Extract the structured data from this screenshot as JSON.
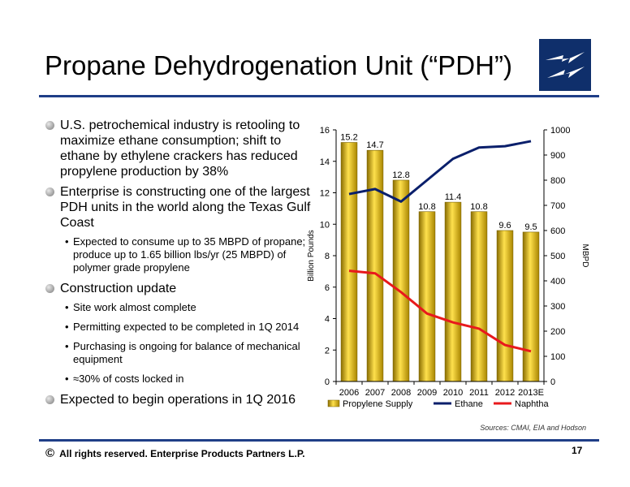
{
  "title": "Propane Dehydrogenation Unit (“PDH”)",
  "logo_icon": "lightning-bolt-logo-icon",
  "bullets": [
    {
      "text": "U.S. petrochemical industry is retooling to maximize ethane consumption; shift to ethane by ethylene crackers has reduced propylene production by 38%",
      "sub": []
    },
    {
      "text": "Enterprise is constructing one of the largest PDH units in the world along the Texas Gulf Coast",
      "sub": [
        "Expected to consume up to 35 MBPD of propane; produce up to 1.65 billion lbs/yr (25 MBPD) of polymer grade propylene"
      ]
    },
    {
      "text": "Construction update",
      "sub": [
        "Site work almost complete",
        "Permitting expected to be completed in 1Q 2014",
        "Purchasing is ongoing for balance of mechanical equipment",
        "≈30% of costs locked in"
      ]
    },
    {
      "text": "Expected to begin operations in 1Q 2016",
      "sub": []
    }
  ],
  "sources": "Sources:  CMAI, EIA and Hodson",
  "footer": {
    "copyright_symbol": "©",
    "text": "All rights reserved. Enterprise Products Partners L.P.",
    "page": "17"
  },
  "chart_data": {
    "type": "bar",
    "categories": [
      "2006",
      "2007",
      "2008",
      "2009",
      "2010",
      "2011",
      "2012",
      "2013E"
    ],
    "ylabel": "Billion Pounds",
    "y2label": "MBPD",
    "ylim": [
      0,
      16
    ],
    "y2lim": [
      0,
      1000
    ],
    "yticks": [
      0,
      2,
      4,
      6,
      8,
      10,
      12,
      14,
      16
    ],
    "y2ticks": [
      0,
      100,
      200,
      300,
      400,
      500,
      600,
      700,
      800,
      900,
      1000
    ],
    "series": [
      {
        "name": "Propylene Supply",
        "type": "bar",
        "axis": "left",
        "values": [
          15.2,
          14.7,
          12.8,
          10.8,
          11.4,
          10.8,
          9.6,
          9.5
        ],
        "labels": [
          "15.2",
          "14.7",
          "12.8",
          "10.8",
          "11.4",
          "10.8",
          "9.6",
          "9.5"
        ],
        "color": "#c9a300"
      },
      {
        "name": "Ethane",
        "type": "line",
        "axis": "right",
        "values": [
          745,
          765,
          715,
          800,
          885,
          930,
          935,
          955
        ],
        "color": "#0a1f6b"
      },
      {
        "name": "Naphtha",
        "type": "line",
        "axis": "right",
        "values": [
          440,
          430,
          355,
          270,
          235,
          210,
          145,
          120
        ],
        "color": "#e8191c"
      }
    ],
    "grid": false,
    "legend": "bottom"
  }
}
